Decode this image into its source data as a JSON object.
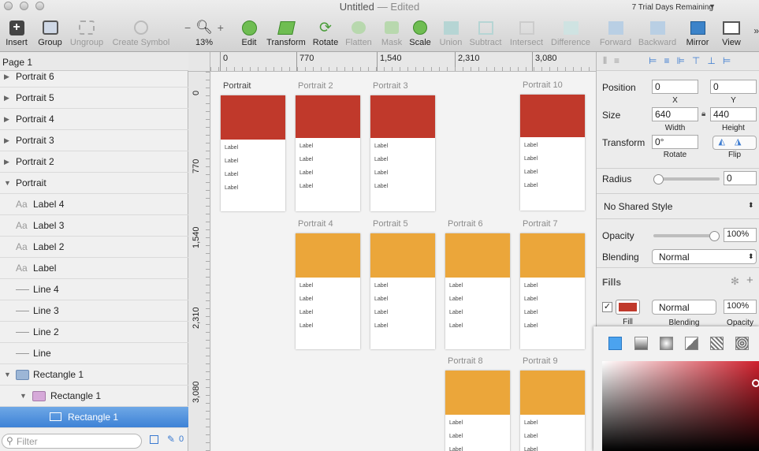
{
  "window": {
    "title": "Untitled",
    "status": "— Edited",
    "trial": "7 Trial Days Remaining"
  },
  "toolbar": {
    "insert": "Insert",
    "group": "Group",
    "ungroup": "Ungroup",
    "create_symbol": "Create Symbol",
    "zoom": "13%",
    "edit": "Edit",
    "transform": "Transform",
    "rotate": "Rotate",
    "flatten": "Flatten",
    "mask": "Mask",
    "scale": "Scale",
    "union": "Union",
    "subtract": "Subtract",
    "intersect": "Intersect",
    "difference": "Difference",
    "forward": "Forward",
    "backward": "Backward",
    "mirror": "Mirror",
    "view": "View",
    "zoom_minus": "−",
    "zoom_plus": "+"
  },
  "sidebar": {
    "page": "Page 1",
    "filter_placeholder": "Filter",
    "count": "0",
    "items": [
      {
        "label": "Portrait 6",
        "kind": "group"
      },
      {
        "label": "Portrait 5",
        "kind": "group"
      },
      {
        "label": "Portrait 4",
        "kind": "group"
      },
      {
        "label": "Portrait 3",
        "kind": "group"
      },
      {
        "label": "Portrait 2",
        "kind": "group"
      },
      {
        "label": "Portrait",
        "kind": "group-open"
      },
      {
        "label": "Label 4",
        "kind": "text"
      },
      {
        "label": "Label 3",
        "kind": "text"
      },
      {
        "label": "Label 2",
        "kind": "text"
      },
      {
        "label": "Label",
        "kind": "text"
      },
      {
        "label": "Line 4",
        "kind": "line"
      },
      {
        "label": "Line 3",
        "kind": "line"
      },
      {
        "label": "Line 2",
        "kind": "line"
      },
      {
        "label": "Line",
        "kind": "line"
      },
      {
        "label": "Rectangle 1",
        "kind": "folder"
      },
      {
        "label": "Rectangle 1",
        "kind": "folder2"
      },
      {
        "label": "Rectangle 1",
        "kind": "rect"
      }
    ],
    "aa": "Aa"
  },
  "ruler": {
    "top": [
      "0",
      "770",
      "1,540",
      "2,310",
      "3,080"
    ],
    "left": [
      "0",
      "770",
      "1,540",
      "2,310",
      "3,080"
    ]
  },
  "artboards": [
    {
      "title": "Portrait",
      "color": "#c0392b"
    },
    {
      "title": "Portrait 2",
      "color": "#c0392b"
    },
    {
      "title": "Portrait 3",
      "color": "#c0392b"
    },
    {
      "title": "Portrait 10",
      "color": "#c0392b"
    },
    {
      "title": "Portrait 4",
      "color": "#eba63a"
    },
    {
      "title": "Portrait 5",
      "color": "#eba63a"
    },
    {
      "title": "Portrait 6",
      "color": "#eba63a"
    },
    {
      "title": "Portrait 7",
      "color": "#eba63a"
    },
    {
      "title": "Portrait 8",
      "color": "#eba63a"
    },
    {
      "title": "Portrait 9",
      "color": "#eba63a"
    }
  ],
  "artboard_label": "Label",
  "inspector": {
    "position_label": "Position",
    "x": "0",
    "y": "0",
    "x_label": "X",
    "y_label": "Y",
    "size_label": "Size",
    "width": "640",
    "height": "440",
    "width_label": "Width",
    "height_label": "Height",
    "transform_label": "Transform",
    "rotate_value": "0°",
    "rotate_label": "Rotate",
    "flip_label": "Flip",
    "radius_label": "Radius",
    "radius_value": "0",
    "radius_level": 0,
    "shared_style": "No Shared Style",
    "opacity_label": "Opacity",
    "opacity_value": "100%",
    "opacity_level": 1,
    "blending_label": "Blending",
    "blending_value": "Normal",
    "fills_label": "Fills",
    "fill_color": "#c0392b",
    "fill_blending": "Normal",
    "fill_opacity": "100%",
    "fill_caption": "Fill",
    "fill_blending_caption": "Blending",
    "fill_opacity_caption": "Opacity"
  }
}
